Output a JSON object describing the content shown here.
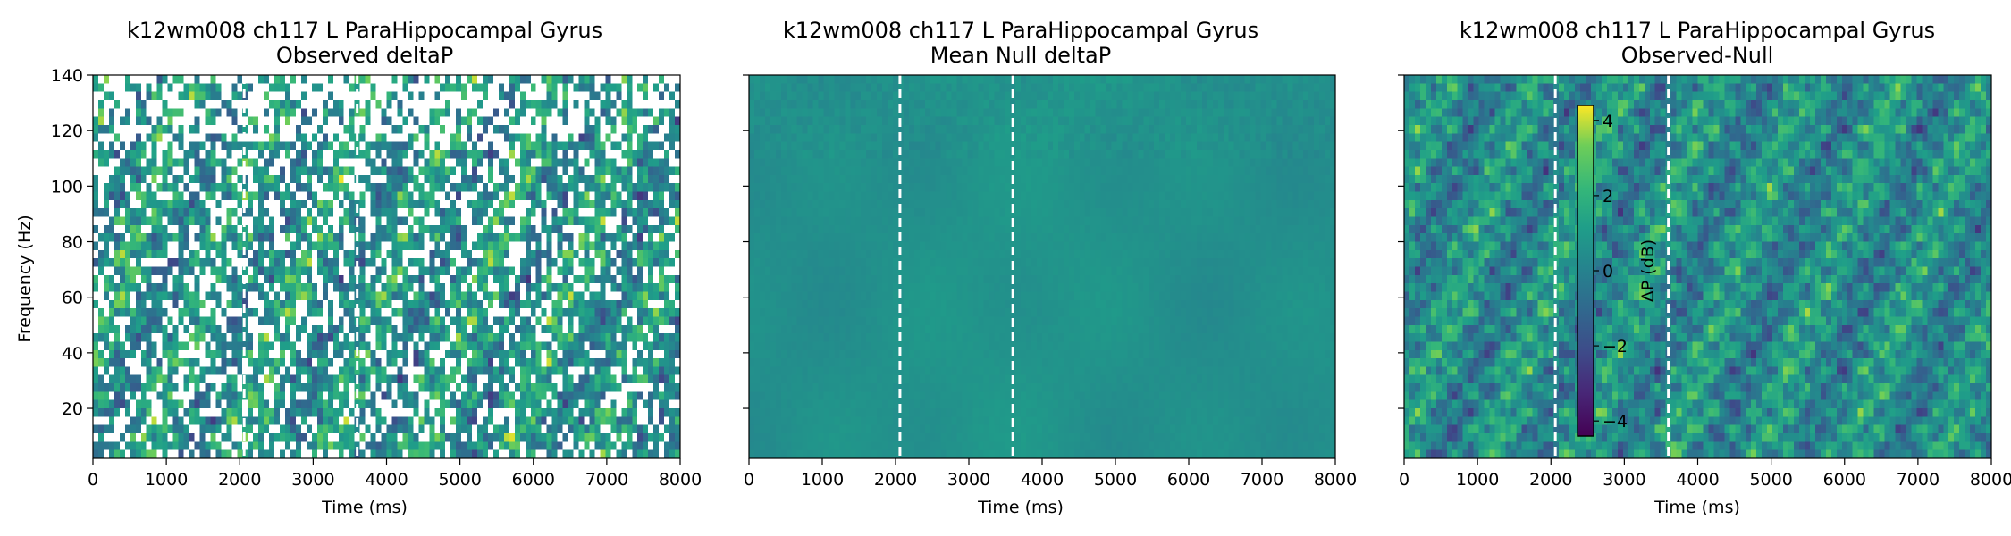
{
  "chart_data": [
    {
      "type": "heatmap",
      "title": "k12wm008 ch117 L ParaHippocampal Gyrus",
      "subtitle": "Observed deltaP",
      "xlabel": "Time (ms)",
      "ylabel": "Frequency (Hz)",
      "xlim": [
        0,
        8000
      ],
      "ylim": [
        2,
        140
      ],
      "xticks": [
        0,
        1000,
        2000,
        3000,
        4000,
        5000,
        6000,
        7000,
        8000
      ],
      "yticks": [
        20,
        40,
        60,
        80,
        100,
        120,
        140
      ],
      "markers_x": [
        2060,
        3600
      ],
      "colormap": "viridis",
      "masked_color": "#ffffff",
      "pattern": "thresholded-observed"
    },
    {
      "type": "heatmap",
      "title": "k12wm008 ch117 L ParaHippocampal Gyrus",
      "subtitle": "Mean Null deltaP",
      "xlabel": "Time (ms)",
      "ylabel": "",
      "xlim": [
        0,
        8000
      ],
      "ylim": [
        2,
        140
      ],
      "xticks": [
        0,
        1000,
        2000,
        3000,
        4000,
        5000,
        6000,
        7000,
        8000
      ],
      "yticks": [
        20,
        40,
        60,
        80,
        100,
        120,
        140
      ],
      "markers_x": [
        2060,
        3600
      ],
      "colormap": "viridis",
      "pattern": "near-zero-null"
    },
    {
      "type": "heatmap",
      "title": "k12wm008 ch117 L ParaHippocampal Gyrus",
      "subtitle": "Observed-Null",
      "xlabel": "Time (ms)",
      "ylabel": "",
      "xlim": [
        0,
        8000
      ],
      "ylim": [
        2,
        140
      ],
      "xticks": [
        0,
        1000,
        2000,
        3000,
        4000,
        5000,
        6000,
        7000,
        8000
      ],
      "yticks": [
        20,
        40,
        60,
        80,
        100,
        120,
        140
      ],
      "markers_x": [
        2060,
        3600
      ],
      "colormap": "viridis",
      "pattern": "difference",
      "colorbar": {
        "label": "ΔP (dB)",
        "range": [
          -4.4,
          4.4
        ],
        "ticks": [
          4,
          2,
          0,
          -2,
          -4
        ],
        "tick_labels": [
          "4",
          "2",
          "0",
          "−2",
          "−4"
        ]
      }
    }
  ]
}
